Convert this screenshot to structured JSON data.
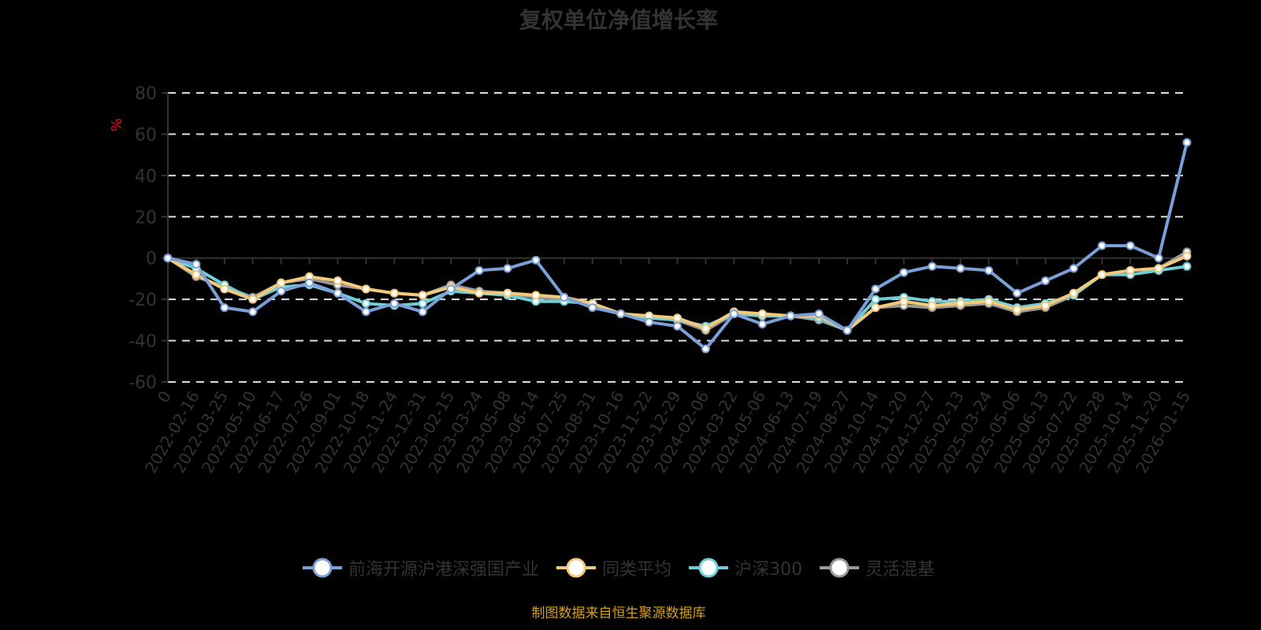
{
  "title": "复权单位净值增长率",
  "footer": "制图数据来自恒生聚源数据库",
  "chart_data": {
    "type": "line",
    "title": "复权单位净值增长率",
    "xlabel": "",
    "ylabel": "%",
    "ylim": [
      -60,
      80
    ],
    "yticks": [
      80,
      60,
      40,
      20,
      0,
      -20,
      -40,
      -60
    ],
    "grid": true,
    "legend_position": "bottom",
    "categories": [
      "0",
      "2022-02-16",
      "2022-03-25",
      "2022-05-10",
      "2022-06-17",
      "2022-07-26",
      "2022-09-01",
      "2022-10-18",
      "2022-11-24",
      "2022-12-31",
      "2023-02-15",
      "2023-03-24",
      "2023-05-08",
      "2023-06-14",
      "2023-07-25",
      "2023-08-31",
      "2023-10-16",
      "2023-11-22",
      "2023-12-29",
      "2024-02-06",
      "2024-03-22",
      "2024-05-06",
      "2024-06-13",
      "2024-07-19",
      "2024-08-27",
      "2024-10-14",
      "2024-11-20",
      "2024-12-27",
      "2025-02-13",
      "2025-03-24",
      "2025-05-06",
      "2025-06-13",
      "2025-07-22",
      "2025-08-28",
      "2025-10-14",
      "2025-11-20",
      "2026-01-15"
    ],
    "series": [
      {
        "name": "前海开源沪港深强国产业",
        "color": "#7b9fd8",
        "values": [
          0,
          -3,
          -24,
          -26,
          -16,
          -12,
          -17,
          -26,
          -22,
          -26,
          -15,
          -6,
          -5,
          -1,
          -19,
          -24,
          -27,
          -31,
          -33,
          -44,
          -27,
          -32,
          -28,
          -27,
          -35,
          -15,
          -7,
          -4,
          -5,
          -6,
          -17,
          -11,
          -5,
          6,
          6,
          0,
          56
        ]
      },
      {
        "name": "同类平均",
        "color": "#f5c97a",
        "values": [
          0,
          -8,
          -15,
          -20,
          -12,
          -9,
          -11,
          -15,
          -17,
          -18,
          -14,
          -17,
          -17,
          -18,
          -19,
          -22,
          -27,
          -28,
          -29,
          -34,
          -26,
          -27,
          -28,
          -28,
          -35,
          -24,
          -21,
          -23,
          -22,
          -21,
          -25,
          -23,
          -17,
          -8,
          -6,
          -5,
          1
        ]
      },
      {
        "name": "沪深300",
        "color": "#6ecfd6",
        "values": [
          0,
          -5,
          -13,
          -20,
          -14,
          -13,
          -17,
          -22,
          -23,
          -22,
          -16,
          -17,
          -18,
          -21,
          -21,
          -22,
          -27,
          -29,
          -30,
          -33,
          -27,
          -28,
          -28,
          -29,
          -35,
          -20,
          -19,
          -21,
          -21,
          -20,
          -24,
          -22,
          -18,
          -8,
          -8,
          -6,
          -4
        ]
      },
      {
        "name": "灵活混基",
        "color": "#999999",
        "values": [
          0,
          -9,
          -14,
          -19,
          -12,
          -10,
          -13,
          -15,
          -17,
          -18,
          -13,
          -16,
          -17,
          -19,
          -20,
          -23,
          -27,
          -29,
          -30,
          -35,
          -27,
          -28,
          -28,
          -30,
          -35,
          -24,
          -23,
          -24,
          -23,
          -22,
          -26,
          -24,
          -18,
          -8,
          -6,
          -5,
          3
        ]
      }
    ]
  },
  "legend": [
    {
      "label": "前海开源沪港深强国产业",
      "color": "#7b9fd8"
    },
    {
      "label": "同类平均",
      "color": "#f5c97a"
    },
    {
      "label": "沪深300",
      "color": "#6ecfd6"
    },
    {
      "label": "灵活混基",
      "color": "#999999"
    }
  ]
}
